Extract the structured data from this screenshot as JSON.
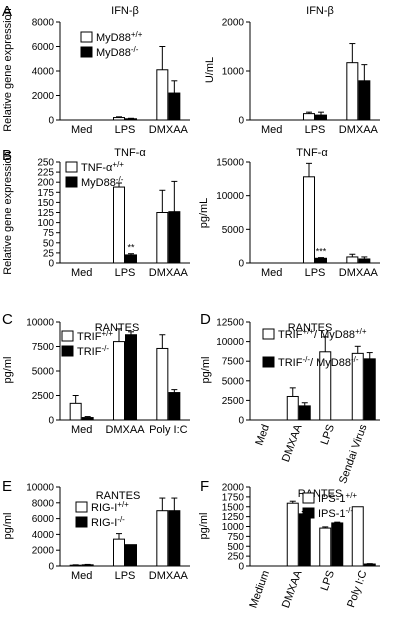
{
  "panel_letters": [
    "A",
    "B",
    "C",
    "D",
    "E",
    "F"
  ],
  "chart_data": [
    {
      "id": "A1",
      "type": "bar",
      "title": "IFN-β",
      "ylabel": "Relative gene expression",
      "categories": [
        "Med",
        "LPS",
        "DMXAA"
      ],
      "ylim": [
        0,
        8000
      ],
      "yticks": [
        0,
        2000,
        4000,
        6000,
        8000
      ],
      "legend": "top-left",
      "grid": false,
      "series": [
        {
          "name": "MyD88+/+",
          "values": [
            0,
            200,
            4100
          ],
          "errors": [
            0,
            60,
            1900
          ]
        },
        {
          "name": "MyD88-/-",
          "values": [
            0,
            100,
            2200
          ],
          "errors": [
            0,
            40,
            1000
          ]
        }
      ]
    },
    {
      "id": "A2",
      "type": "bar",
      "title": "IFN-β",
      "ylabel": "U/mL",
      "categories": [
        "Med",
        "LPS",
        "DMXAA"
      ],
      "ylim": [
        0,
        2000
      ],
      "yticks": [
        0,
        1000,
        2000
      ],
      "grid": false,
      "series": [
        {
          "values": [
            0,
            130,
            1170
          ],
          "errors": [
            0,
            30,
            390
          ]
        },
        {
          "values": [
            0,
            100,
            800
          ],
          "errors": [
            0,
            60,
            330
          ]
        }
      ]
    },
    {
      "id": "B1",
      "type": "bar",
      "title": "TNF-α",
      "ylabel": "Relative gene expression",
      "categories": [
        "Med",
        "LPS",
        "DMXAA"
      ],
      "ylim": [
        0,
        250
      ],
      "yticks": [
        0,
        25,
        50,
        75,
        100,
        125,
        150,
        175,
        200,
        225,
        250
      ],
      "legend": "top-left",
      "grid": false,
      "series": [
        {
          "name": "TNF-α+/+",
          "values": [
            0,
            188,
            125
          ],
          "errors": [
            0,
            10,
            55
          ]
        },
        {
          "name": "MyD88-/-",
          "values": [
            0,
            20,
            127
          ],
          "errors": [
            0,
            3,
            75
          ]
        }
      ],
      "annotations": [
        {
          "category": "LPS",
          "text": "**"
        }
      ]
    },
    {
      "id": "B2",
      "type": "bar",
      "title": "TNF-α",
      "ylabel": "pg/mL",
      "categories": [
        "Med",
        "LPS",
        "DMXAA"
      ],
      "ylim": [
        0,
        15000
      ],
      "yticks": [
        0,
        5000,
        10000,
        15000
      ],
      "grid": false,
      "series": [
        {
          "values": [
            0,
            12800,
            900
          ],
          "errors": [
            0,
            2000,
            400
          ]
        },
        {
          "values": [
            0,
            700,
            600
          ],
          "errors": [
            0,
            100,
            300
          ]
        }
      ],
      "annotations": [
        {
          "category": "LPS",
          "text": "***"
        }
      ]
    },
    {
      "id": "C",
      "type": "bar",
      "title": "RANTES",
      "ylabel": "pg/ml",
      "categories": [
        "Med",
        "DMXAA",
        "Poly I:C"
      ],
      "ylim": [
        0,
        10000
      ],
      "yticks": [
        0,
        2500,
        5000,
        7500,
        10000
      ],
      "legend": "top-left",
      "grid": false,
      "series": [
        {
          "name": "TRIF+/+",
          "values": [
            1700,
            8000,
            7300
          ],
          "errors": [
            800,
            1300,
            1400
          ]
        },
        {
          "name": "TRIF-/-",
          "values": [
            250,
            8700,
            2800
          ],
          "errors": [
            100,
            300,
            300
          ]
        }
      ]
    },
    {
      "id": "D",
      "type": "bar",
      "title": "RANTES",
      "ylabel": "pg/ml",
      "categories": [
        "Med",
        "DMXAA",
        "LPS",
        "Sendai Virus"
      ],
      "ylim": [
        0,
        12500
      ],
      "yticks": [
        0,
        2500,
        5000,
        7500,
        10000,
        12500
      ],
      "legend": "top-left",
      "grid": false,
      "series": [
        {
          "name": "TRIF+/+/ MyD88+/+",
          "values": [
            0,
            3000,
            8700,
            8500
          ],
          "errors": [
            0,
            1100,
            1900,
            900
          ]
        },
        {
          "name": "TRIF-/-/ MyD88-/-",
          "values": [
            0,
            1800,
            0,
            7800
          ],
          "errors": [
            0,
            400,
            0,
            800
          ]
        }
      ]
    },
    {
      "id": "E",
      "type": "bar",
      "title": "RANTES",
      "ylabel": "pg/ml",
      "categories": [
        "Med",
        "LPS",
        "DMXAA"
      ],
      "ylim": [
        0,
        10000
      ],
      "yticks": [
        0,
        2000,
        4000,
        6000,
        8000,
        10000
      ],
      "legend": "top-left",
      "grid": false,
      "series": [
        {
          "name": "RIG-I+/+",
          "values": [
            100,
            3400,
            7000
          ],
          "errors": [
            50,
            700,
            1600
          ]
        },
        {
          "name": "RIG-I-/-",
          "values": [
            150,
            2700,
            7000
          ],
          "errors": [
            50,
            0,
            1600
          ]
        }
      ]
    },
    {
      "id": "F",
      "type": "bar",
      "title": "RANTES",
      "ylabel": "pg/ml",
      "categories": [
        "Medium",
        "DMXAA",
        "LPS",
        "Poly I:C"
      ],
      "ylim": [
        0,
        2000
      ],
      "yticks": [
        0,
        250,
        500,
        750,
        1000,
        1250,
        1500,
        1750,
        2000
      ],
      "legend": "top-right",
      "grid": false,
      "series": [
        {
          "name": "IPS-1+/+",
          "values": [
            0,
            1590,
            960,
            1500
          ],
          "errors": [
            0,
            50,
            30,
            0
          ]
        },
        {
          "name": "IPS-1-/-",
          "values": [
            0,
            1320,
            1090,
            50
          ],
          "errors": [
            0,
            60,
            20,
            10
          ]
        }
      ]
    }
  ]
}
